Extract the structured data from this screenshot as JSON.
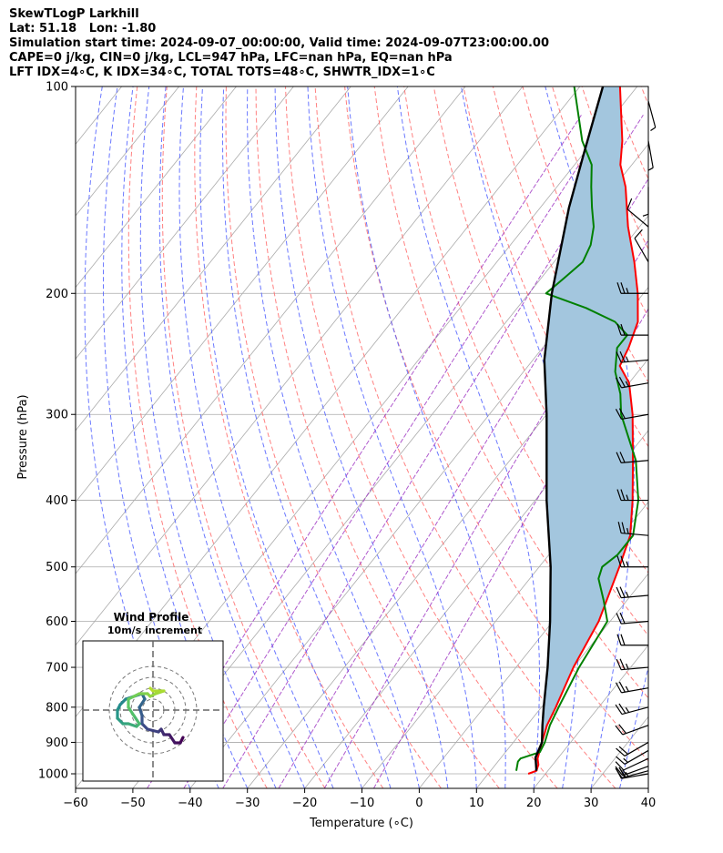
{
  "header": {
    "line1": "SkewTLogP Larkhill",
    "line2": "Lat: 51.18   Lon: -1.80",
    "line3": "Simulation start time: 2024-09-07_00:00:00, Valid time: 2024-09-07T23:00:00.00",
    "line4": "CAPE=0 j/kg, CIN=0 j/kg, LCL=947 hPa, LFC=nan hPa, EQ=nan hPa",
    "line5": "LFT IDX=4∘C, K IDX=34∘C, TOTAL TOTS=48∘C, SHWTR_IDX=1∘C"
  },
  "colors": {
    "temperature": "#ff0000",
    "dewpoint": "#008000",
    "parcel": "#000000",
    "shade": "#a3c6de",
    "dry_adiabat": "#ff6b6b",
    "moist_adiabat": "#5060ff",
    "mixing_ratio": "#9b30c0",
    "isotherm": "#aaaaaa",
    "hodo_start": "#440154",
    "hodo_end": "#b5de2b"
  },
  "chart_data": [
    {
      "type": "line",
      "subtype": "skew-t log-p",
      "xlabel": "Temperature (∘C)",
      "ylabel": "Pressure (hPa)",
      "xlim": [
        -60,
        40
      ],
      "ylim": [
        1050,
        100
      ],
      "x_ticks": [
        "−60",
        "−50",
        "−40",
        "−30",
        "−20",
        "−10",
        "0",
        "10",
        "20",
        "30",
        "40"
      ],
      "y_ticks": [
        "100",
        "200",
        "300",
        "400",
        "500",
        "600",
        "700",
        "800",
        "900",
        "1000"
      ],
      "grid": true,
      "series": [
        {
          "key": "temperature",
          "points": [
            [
              1000,
              17
            ],
            [
              990,
              18
            ],
            [
              970,
              17.5
            ],
            [
              950,
              16.5
            ],
            [
              900,
              15
            ],
            [
              850,
              13.5
            ],
            [
              800,
              12.5
            ],
            [
              700,
              10
            ],
            [
              600,
              8
            ],
            [
              500,
              4
            ],
            [
              450,
              1.5
            ],
            [
              400,
              -3
            ],
            [
              350,
              -8.5
            ],
            [
              300,
              -15
            ],
            [
              270,
              -20
            ],
            [
              255,
              -24
            ],
            [
              240,
              -25
            ],
            [
              220,
              -27
            ],
            [
              200,
              -31
            ],
            [
              180,
              -36
            ],
            [
              160,
              -42
            ],
            [
              140,
              -48
            ],
            [
              130,
              -52
            ],
            [
              120,
              -55
            ],
            [
              100,
              -63
            ]
          ]
        },
        {
          "key": "dewpoint",
          "points": [
            [
              990,
              14.5
            ],
            [
              960,
              13.5
            ],
            [
              950,
              13.5
            ],
            [
              930,
              16
            ],
            [
              900,
              15.5
            ],
            [
              850,
              14
            ],
            [
              800,
              13
            ],
            [
              700,
              11
            ],
            [
              600,
              9.5
            ],
            [
              560,
              6
            ],
            [
              520,
              2
            ],
            [
              500,
              1
            ],
            [
              480,
              2
            ],
            [
              450,
              2
            ],
            [
              400,
              -2
            ],
            [
              350,
              -8
            ],
            [
              300,
              -17
            ],
            [
              280,
              -20
            ],
            [
              260,
              -24
            ],
            [
              240,
              -27
            ],
            [
              230,
              -27
            ],
            [
              220,
              -31
            ],
            [
              210,
              -38
            ],
            [
              200,
              -47
            ],
            [
              190,
              -46
            ],
            [
              180,
              -45
            ],
            [
              170,
              -46
            ],
            [
              160,
              -48
            ],
            [
              150,
              -51
            ],
            [
              140,
              -54
            ],
            [
              130,
              -57
            ],
            [
              120,
              -62
            ],
            [
              100,
              -71
            ]
          ]
        },
        {
          "key": "parcel",
          "points": [
            [
              990,
              18
            ],
            [
              947,
              16
            ],
            [
              900,
              15
            ],
            [
              850,
              12.7
            ],
            [
              800,
              10.4
            ],
            [
              700,
              5.5
            ],
            [
              600,
              -0.5
            ],
            [
              500,
              -8
            ],
            [
              400,
              -18
            ],
            [
              300,
              -30
            ],
            [
              250,
              -38
            ],
            [
              200,
              -46
            ],
            [
              150,
              -55
            ],
            [
              125,
              -60
            ],
            [
              100,
              -66
            ]
          ]
        }
      ],
      "hodograph": {
        "title": "Wind Profile",
        "subtitle": "10m/s increment",
        "path": [
          [
            11,
            -10
          ],
          [
            10,
            -12
          ],
          [
            8,
            -12
          ],
          [
            6,
            -9
          ],
          [
            4,
            -9
          ],
          [
            3,
            -7
          ],
          [
            2,
            -8
          ],
          [
            -2,
            -7
          ],
          [
            -4,
            -5
          ],
          [
            -4,
            -2
          ],
          [
            -5,
            1
          ],
          [
            -3,
            4
          ],
          [
            -4,
            6
          ],
          [
            -7,
            5
          ],
          [
            -10,
            4
          ],
          [
            -12,
            2
          ],
          [
            -13,
            0
          ],
          [
            -13,
            -3
          ],
          [
            -11,
            -5
          ],
          [
            -9,
            -5
          ],
          [
            -6,
            -6
          ],
          [
            -5,
            -5
          ],
          [
            -7,
            -2
          ],
          [
            -9,
            1
          ],
          [
            -9,
            4
          ],
          [
            -7,
            5
          ],
          [
            -5,
            6
          ],
          [
            -2,
            6
          ],
          [
            -1,
            5
          ],
          [
            1,
            6
          ],
          [
            4,
            7
          ],
          [
            0,
            7
          ],
          [
            -1,
            8
          ]
        ]
      },
      "wind_barbs": [
        {
          "p": 1000,
          "speed": 25,
          "dir": 260
        },
        {
          "p": 990,
          "speed": 20,
          "dir": 255
        },
        {
          "p": 975,
          "speed": 15,
          "dir": 250
        },
        {
          "p": 950,
          "speed": 12,
          "dir": 245
        },
        {
          "p": 925,
          "speed": 15,
          "dir": 240
        },
        {
          "p": 900,
          "speed": 20,
          "dir": 240
        },
        {
          "p": 850,
          "speed": 20,
          "dir": 250
        },
        {
          "p": 800,
          "speed": 25,
          "dir": 255
        },
        {
          "p": 750,
          "speed": 25,
          "dir": 260
        },
        {
          "p": 700,
          "speed": 25,
          "dir": 265
        },
        {
          "p": 650,
          "speed": 20,
          "dir": 270
        },
        {
          "p": 600,
          "speed": 20,
          "dir": 265
        },
        {
          "p": 550,
          "speed": 25,
          "dir": 265
        },
        {
          "p": 500,
          "speed": 25,
          "dir": 270
        },
        {
          "p": 450,
          "speed": 25,
          "dir": 275
        },
        {
          "p": 400,
          "speed": 25,
          "dir": 270
        },
        {
          "p": 350,
          "speed": 20,
          "dir": 265
        },
        {
          "p": 300,
          "speed": 20,
          "dir": 260
        },
        {
          "p": 270,
          "speed": 25,
          "dir": 260
        },
        {
          "p": 250,
          "speed": 25,
          "dir": 265
        },
        {
          "p": 230,
          "speed": 20,
          "dir": 270
        },
        {
          "p": 200,
          "speed": 25,
          "dir": 270
        },
        {
          "p": 180,
          "speed": 10,
          "dir": 330
        },
        {
          "p": 160,
          "speed": 10,
          "dir": 310
        },
        {
          "p": 140,
          "speed": 5,
          "dir": 180
        },
        {
          "p": 120,
          "speed": 5,
          "dir": 170
        },
        {
          "p": 105,
          "speed": 5,
          "dir": 165
        }
      ]
    }
  ]
}
